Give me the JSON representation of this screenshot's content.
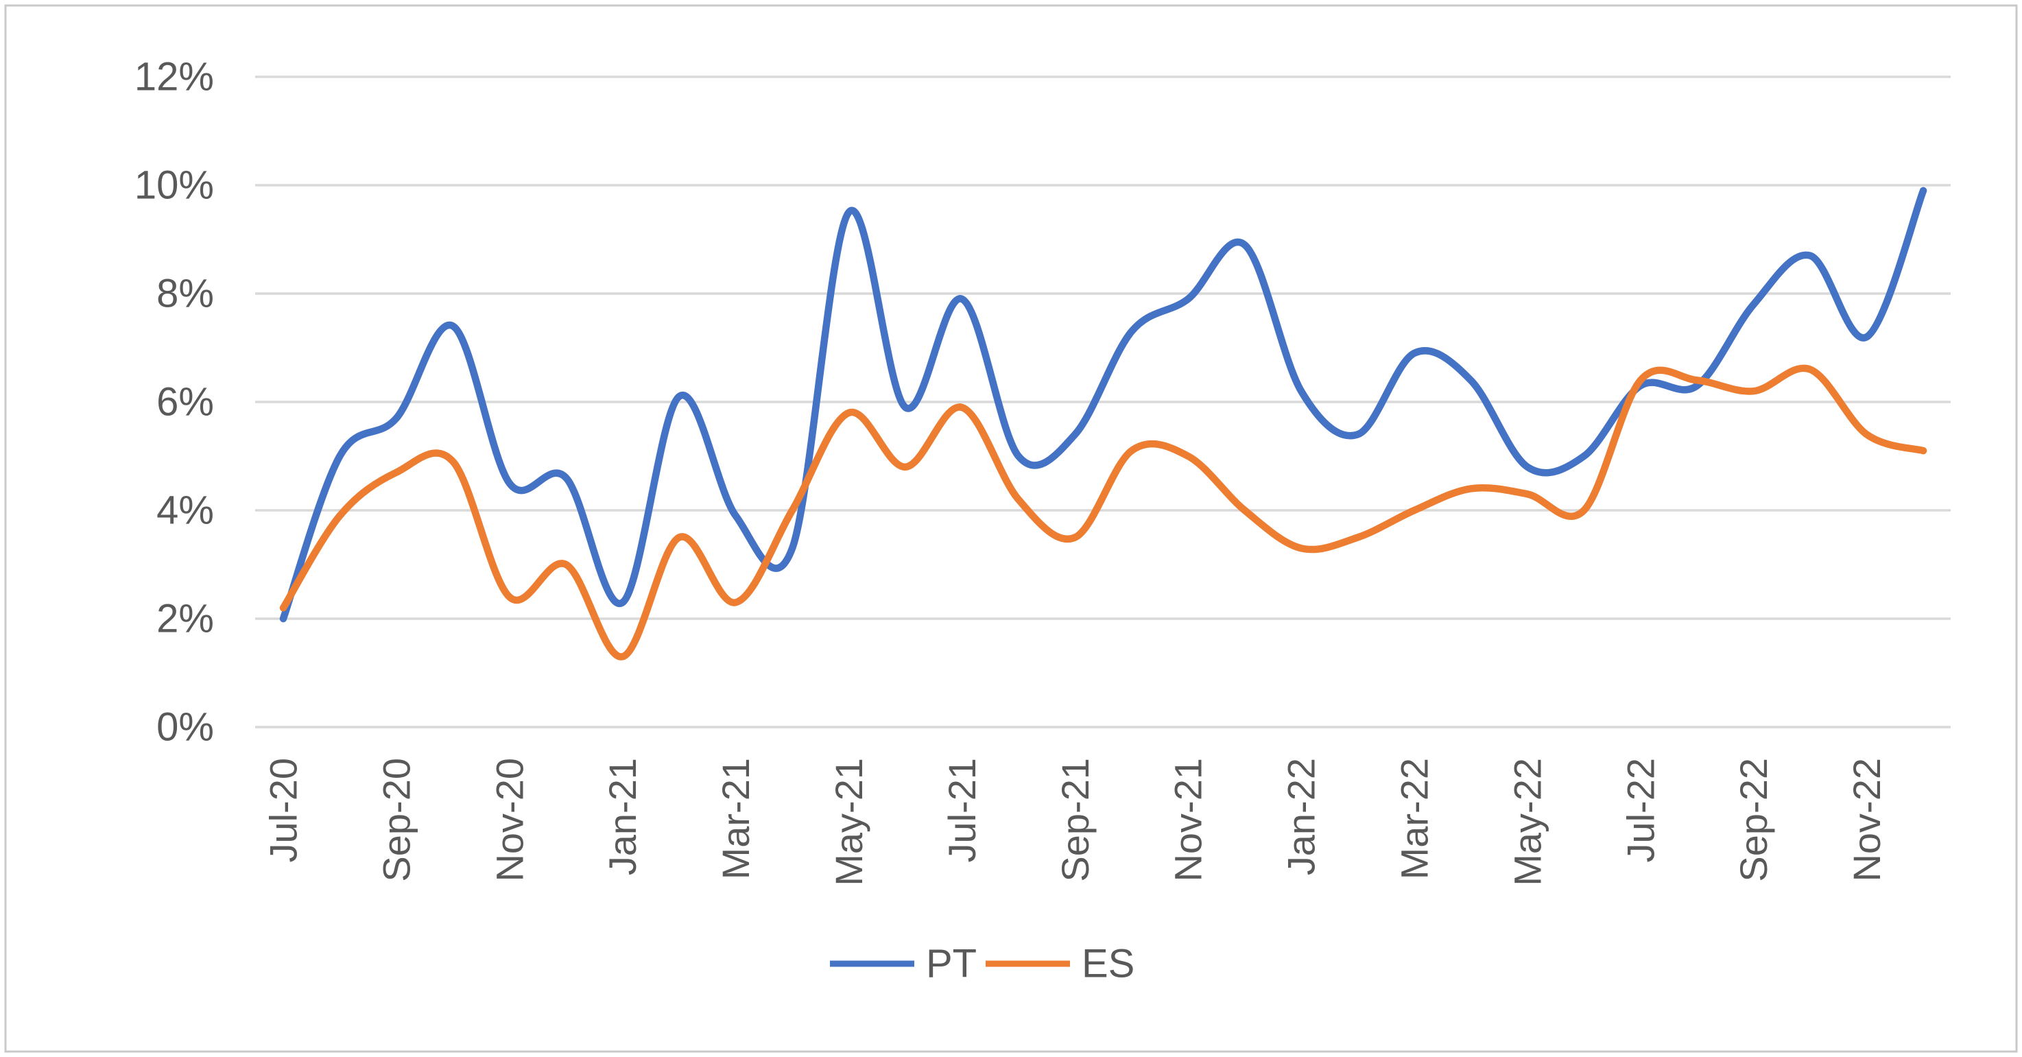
{
  "chart_data": {
    "type": "line",
    "title": "",
    "xlabel": "",
    "ylabel": "",
    "ylim": [
      0,
      12
    ],
    "grid": true,
    "legend_position": "bottom-center",
    "y_tick_labels": [
      "0%",
      "2%",
      "4%",
      "6%",
      "8%",
      "10%",
      "12%"
    ],
    "y_tick_values": [
      0,
      2,
      4,
      6,
      8,
      10,
      12
    ],
    "x_axis_shown_labels": [
      "Jul-20",
      "Sep-20",
      "Nov-20",
      "Jan-21",
      "Mar-21",
      "May-21",
      "Jul-21",
      "Sep-21",
      "Nov-21",
      "Jan-22",
      "Mar-22",
      "May-22",
      "Jul-22",
      "Sep-22",
      "Nov-22"
    ],
    "categories": [
      "Jul-20",
      "Aug-20",
      "Sep-20",
      "Oct-20",
      "Nov-20",
      "Dec-20",
      "Jan-21",
      "Feb-21",
      "Mar-21",
      "Apr-21",
      "May-21",
      "Jun-21",
      "Jul-21",
      "Aug-21",
      "Sep-21",
      "Oct-21",
      "Nov-21",
      "Dec-21",
      "Jan-22",
      "Feb-22",
      "Mar-22",
      "Apr-22",
      "May-22",
      "Jun-22",
      "Jul-22",
      "Aug-22",
      "Sep-22",
      "Oct-22",
      "Nov-22",
      "Dec-22"
    ],
    "series": [
      {
        "name": "PT",
        "color": "#4472C4",
        "values": [
          2.0,
          5.0,
          5.7,
          7.4,
          4.5,
          4.6,
          2.3,
          6.1,
          3.9,
          3.3,
          9.5,
          5.9,
          7.9,
          5.0,
          5.4,
          7.3,
          7.9,
          8.9,
          6.2,
          5.4,
          6.9,
          6.4,
          4.8,
          5.0,
          6.3,
          6.3,
          7.8,
          8.7,
          7.2,
          9.9
        ]
      },
      {
        "name": "ES",
        "color": "#ED7D31",
        "values": [
          2.2,
          3.9,
          4.7,
          4.9,
          2.4,
          3.0,
          1.3,
          3.5,
          2.3,
          4.0,
          5.8,
          4.8,
          5.9,
          4.2,
          3.5,
          5.1,
          5.0,
          4.0,
          3.3,
          3.5,
          4.0,
          4.4,
          4.3,
          4.0,
          6.4,
          6.4,
          6.2,
          6.6,
          5.4,
          5.1
        ]
      }
    ]
  },
  "legend": {
    "items": [
      {
        "label": "PT",
        "color": "#4472C4"
      },
      {
        "label": "ES",
        "color": "#ED7D31"
      }
    ]
  },
  "colors": {
    "background": "#FFFFFF",
    "gridline": "#D9D9D9",
    "axis_text": "#595959",
    "frame_border": "#C9C9C9",
    "series_pt": "#4472C4",
    "series_es": "#ED7D31"
  }
}
